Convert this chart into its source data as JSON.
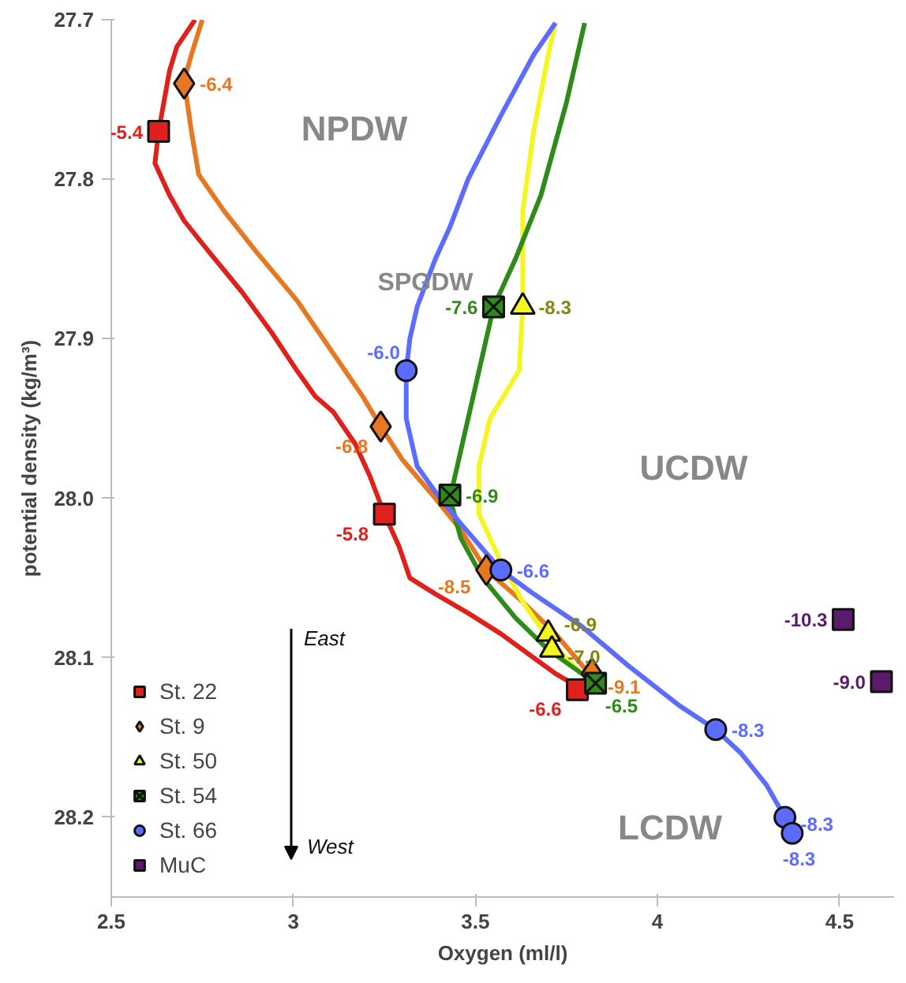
{
  "chart_data": {
    "type": "line",
    "xlabel": "Oxygen (ml/l)",
    "ylabel": "potential density (kg/m³)",
    "xlim": [
      2.5,
      4.65
    ],
    "xticks": [
      2.5,
      3,
      3.5,
      4,
      4.5
    ],
    "ylim": [
      28.25,
      27.7
    ],
    "yticks": [
      27.7,
      27.8,
      27.9,
      {
        "value": 28.0,
        "label": "28.0"
      },
      28.1,
      28.2
    ],
    "grid": false,
    "legend": "bottom left",
    "annotations": [
      "NPDW",
      "SPGDW",
      "UCDW",
      "LCDW",
      "East",
      "West",
      {
        "text": "-5.4",
        "x": 2.63,
        "y": 27.77
      },
      {
        "text": "-5.8",
        "x": 3.25,
        "y": 28.01
      },
      {
        "text": "-6.6",
        "x": 3.78,
        "y": 28.12
      },
      {
        "text": "-6.4",
        "x": 2.7,
        "y": 27.74
      },
      {
        "text": "-6.8",
        "x": 3.24,
        "y": 27.955
      },
      {
        "text": "-8.5",
        "x": 3.53,
        "y": 28.045
      },
      {
        "text": "-9.1",
        "x": 3.82,
        "y": 28.11
      },
      {
        "text": "-8.3",
        "x": 3.63,
        "y": 27.88
      },
      {
        "text": "-6.9",
        "x": 3.7,
        "y": 28.085
      },
      {
        "text": "-7.0",
        "x": 3.71,
        "y": 28.095
      },
      {
        "text": "-7.6",
        "x": 3.55,
        "y": 27.88
      },
      {
        "text": "-6.9",
        "x": 3.43,
        "y": 27.998
      },
      {
        "text": "-6.5",
        "x": 3.83,
        "y": 28.116
      },
      {
        "text": "-6.0",
        "x": 3.31,
        "y": 27.92
      },
      {
        "text": "-6.6",
        "x": 3.57,
        "y": 28.045
      },
      {
        "text": "-8.3",
        "x": 4.16,
        "y": 28.145
      },
      {
        "text": "-8.3",
        "x": 4.35,
        "y": 28.2
      },
      {
        "text": "-8.3",
        "x": 4.37,
        "y": 28.21
      },
      {
        "text": "-10.3",
        "x": 4.51,
        "y": 28.076
      },
      {
        "text": "-9.0",
        "x": 4.615,
        "y": 28.115
      }
    ],
    "series": [
      {
        "color": "#e0201b",
        "x": [
          2.73,
          2.68,
          2.66,
          2.63,
          2.62,
          2.66,
          2.7,
          2.77,
          2.86,
          2.94,
          3.01,
          3.06,
          3.11,
          3.17,
          3.21,
          3.25,
          3.29,
          3.32,
          3.39,
          3.48,
          3.57,
          3.66,
          3.72,
          3.78
        ],
        "values": [
          27.7,
          27.717,
          27.732,
          27.77,
          27.79,
          27.81,
          27.826,
          27.846,
          27.871,
          27.896,
          27.92,
          27.936,
          27.946,
          27.966,
          27.986,
          28.01,
          28.03,
          28.05,
          28.06,
          28.072,
          28.085,
          28.1,
          28.11,
          28.118
        ]
      },
      {
        "color": "#e87722",
        "x": [
          2.75,
          2.72,
          2.7,
          2.72,
          2.74,
          2.81,
          2.9,
          3.01,
          3.1,
          3.19,
          3.24,
          3.3,
          3.39,
          3.46,
          3.53,
          3.63,
          3.72,
          3.82
        ],
        "values": [
          27.7,
          27.722,
          27.738,
          27.77,
          27.797,
          27.82,
          27.846,
          27.876,
          27.906,
          27.936,
          27.955,
          27.976,
          28.0,
          28.02,
          28.045,
          28.065,
          28.085,
          28.112
        ]
      },
      {
        "color": "#f5f520",
        "x": [
          3.72,
          3.7,
          3.66,
          3.63,
          3.63,
          3.62,
          3.54,
          3.51,
          3.51,
          3.57,
          3.63,
          3.7,
          3.79
        ],
        "values": [
          27.702,
          27.722,
          27.77,
          27.82,
          27.88,
          27.92,
          27.95,
          27.98,
          28.01,
          28.04,
          28.065,
          28.088,
          28.11
        ]
      },
      {
        "color": "#2e8b1a",
        "x": [
          3.8,
          3.75,
          3.68,
          3.61,
          3.55,
          3.5,
          3.46,
          3.43,
          3.46,
          3.52,
          3.61,
          3.7,
          3.83
        ],
        "values": [
          27.702,
          27.752,
          27.81,
          27.85,
          27.88,
          27.93,
          27.97,
          28.0,
          28.025,
          28.05,
          28.075,
          28.095,
          28.116
        ]
      },
      {
        "color": "#5b6cff",
        "x": [
          3.72,
          3.66,
          3.57,
          3.48,
          3.43,
          3.39,
          3.34,
          3.32,
          3.31,
          3.31,
          3.34,
          3.39,
          3.46,
          3.57,
          3.66,
          3.79,
          3.92,
          4.06,
          4.16,
          4.23,
          4.3,
          4.35,
          4.37
        ],
        "values": [
          27.702,
          27.722,
          27.76,
          27.8,
          27.83,
          27.85,
          27.88,
          27.9,
          27.92,
          27.95,
          27.98,
          27.996,
          28.016,
          28.045,
          28.06,
          28.08,
          28.105,
          28.13,
          28.145,
          28.16,
          28.18,
          28.2,
          28.21
        ]
      },
      {
        "type": "scatter",
        "name": "St. 22",
        "marker": "square",
        "color": "#e0201b",
        "x": [
          2.63,
          3.25,
          3.78
        ],
        "values": [
          27.77,
          28.01,
          28.12
        ]
      },
      {
        "type": "scatter",
        "name": "St. 9",
        "marker": "diamond",
        "color": "#e87722",
        "x": [
          2.7,
          3.24,
          3.53,
          3.82
        ],
        "values": [
          27.74,
          27.955,
          28.045,
          28.11
        ]
      },
      {
        "type": "scatter",
        "name": "St. 50",
        "marker": "triangle",
        "color": "#f5f520",
        "x": [
          3.63,
          3.7,
          3.71
        ],
        "values": [
          27.88,
          28.085,
          28.095
        ]
      },
      {
        "type": "scatter",
        "name": "St. 54",
        "marker": "cross",
        "color": "#2e8b1a",
        "x": [
          3.55,
          3.43,
          3.83
        ],
        "values": [
          27.88,
          27.998,
          28.116
        ]
      },
      {
        "type": "scatter",
        "name": "St. 66",
        "marker": "circle",
        "color": "#5b6cff",
        "x": [
          3.31,
          3.57,
          4.16,
          4.35,
          4.37
        ],
        "values": [
          27.92,
          28.045,
          28.145,
          28.2,
          28.21
        ]
      },
      {
        "type": "scatter",
        "name": "MuC",
        "marker": "square",
        "color": "#5b1a6b",
        "x": [
          4.51,
          4.615
        ],
        "values": [
          28.076,
          28.115
        ]
      }
    ]
  }
}
